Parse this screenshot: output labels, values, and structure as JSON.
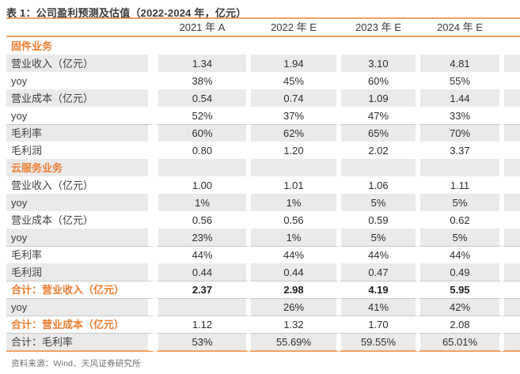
{
  "title": "表 1：公司盈利预测及估值（2022-2024 年，亿元）",
  "source": "资料来源：Wind、天风证券研究所",
  "colors": {
    "accent_text": "#ed7d31",
    "rule_orange": "#f0a265",
    "row_shade": "#eaeaea",
    "row_divider": "#c9c9c9",
    "title_text": "#3b3b3b",
    "source_text": "#6e6e6e"
  },
  "table": {
    "columns": [
      "",
      "2021 年 A",
      "2022 年 E",
      "2023 年 E",
      "2024 年 E"
    ],
    "rows": [
      {
        "label": "固件业务",
        "values": [
          "",
          "",
          "",
          ""
        ],
        "section": true,
        "shaded": false
      },
      {
        "label": "营业收入（亿元）",
        "values": [
          "1.34",
          "1.94",
          "3.10",
          "4.81"
        ],
        "shaded": true
      },
      {
        "label": "yoy",
        "values": [
          "38%",
          "45%",
          "60%",
          "55%"
        ],
        "shaded": false
      },
      {
        "label": "营业成本（亿元）",
        "values": [
          "0.54",
          "0.74",
          "1.09",
          "1.44"
        ],
        "shaded": true
      },
      {
        "label": "yoy",
        "values": [
          "52%",
          "37%",
          "47%",
          "33%"
        ],
        "shaded": false
      },
      {
        "label": "毛利率",
        "values": [
          "60%",
          "62%",
          "65%",
          "70%"
        ],
        "shaded": true,
        "top_border": true
      },
      {
        "label": "毛利润",
        "values": [
          "0.80",
          "1.20",
          "2.02",
          "3.37"
        ],
        "shaded": false
      },
      {
        "label": "云服务业务",
        "values": [
          "",
          "",
          "",
          ""
        ],
        "section": true,
        "shaded": true
      },
      {
        "label": "营业收入（亿元）",
        "values": [
          "1.00",
          "1.01",
          "1.06",
          "1.11"
        ],
        "shaded": false
      },
      {
        "label": "yoy",
        "values": [
          "1%",
          "1%",
          "5%",
          "5%"
        ],
        "shaded": true
      },
      {
        "label": "营业成本（亿元）",
        "values": [
          "0.56",
          "0.56",
          "0.59",
          "0.62"
        ],
        "shaded": false
      },
      {
        "label": "yoy",
        "values": [
          "23%",
          "1%",
          "5%",
          "5%"
        ],
        "shaded": true
      },
      {
        "label": "毛利率",
        "values": [
          "44%",
          "44%",
          "44%",
          "44%"
        ],
        "shaded": false,
        "top_border": true
      },
      {
        "label": "毛利润",
        "values": [
          "0.44",
          "0.44",
          "0.47",
          "0.49"
        ],
        "shaded": true
      },
      {
        "label": "合计：营业收入（亿元）",
        "values": [
          "2.37",
          "2.98",
          "4.19",
          "5.95"
        ],
        "shaded": false,
        "accent_label": true,
        "bold_values": true,
        "top_border": true
      },
      {
        "label": "yoy",
        "values": [
          "",
          "26%",
          "41%",
          "42%"
        ],
        "shaded": true,
        "top_border": true
      },
      {
        "label": "合计：营业成本（亿元）",
        "values": [
          "1.12",
          "1.32",
          "1.70",
          "2.08"
        ],
        "shaded": false,
        "accent_label": true,
        "top_border": true
      },
      {
        "label": "合计：毛利率",
        "values": [
          "53%",
          "55.69%",
          "59.55%",
          "65.01%"
        ],
        "shaded": true,
        "top_border": true,
        "last": true
      }
    ]
  }
}
